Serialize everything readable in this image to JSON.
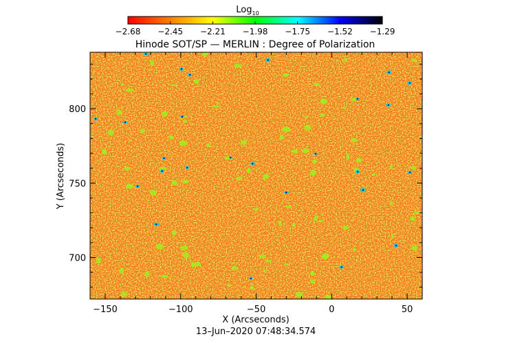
{
  "figure": {
    "title": "Hinode SOT/SP — MERLIN : Degree of Polarization",
    "timestamp": "13–Jun–2020 07:48:34.574"
  },
  "colorbar": {
    "label_main": "Log",
    "label_sub": "10",
    "ticks": [
      "−2.68",
      "−2.45",
      "−2.21",
      "−1.98",
      "−1.75",
      "−1.52",
      "−1.29"
    ],
    "range": [
      -2.68,
      -1.29
    ],
    "colormap": [
      "#ff0000",
      "#ff7f00",
      "#ffff00",
      "#00ff00",
      "#00ffff",
      "#0000ff",
      "#000000"
    ]
  },
  "image": {
    "type": "heatmap",
    "background_color": "#f77a18",
    "x_range": [
      -160,
      60
    ],
    "y_range": [
      672,
      838
    ],
    "x_axis": {
      "label": "X (Arcseconds)",
      "ticks": [
        {
          "value": -150,
          "label": "−150"
        },
        {
          "value": -100,
          "label": "−100"
        },
        {
          "value": -50,
          "label": "−50"
        },
        {
          "value": 0,
          "label": "0"
        },
        {
          "value": 50,
          "label": "50"
        }
      ]
    },
    "y_axis": {
      "label": "Y (Arcseconds)",
      "ticks": [
        {
          "value": 700,
          "label": "700"
        },
        {
          "value": 750,
          "label": "750"
        },
        {
          "value": 800,
          "label": "800"
        }
      ]
    }
  }
}
